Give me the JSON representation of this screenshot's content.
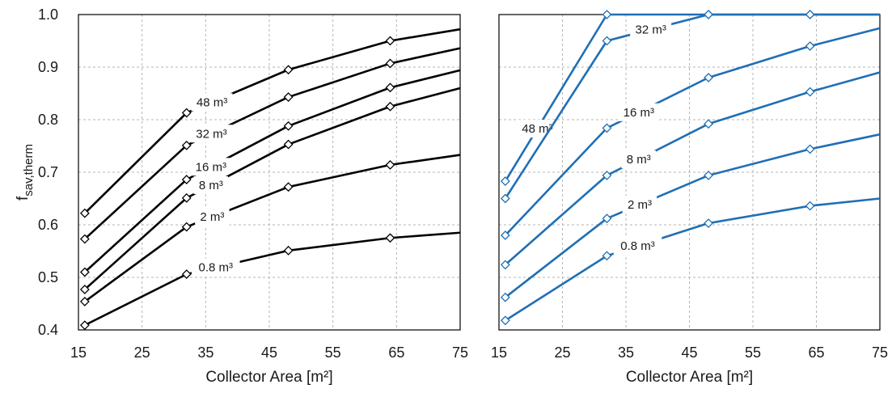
{
  "y_axis_title": {
    "main": "f",
    "subscript": "sav,therm"
  },
  "chart_data": [
    {
      "type": "line",
      "xlabel": "Collector Area [m²]",
      "ylabel": "fsav,therm",
      "xlim": [
        15,
        75
      ],
      "ylim": [
        0.4,
        1.0
      ],
      "xticks": [
        15,
        25,
        35,
        45,
        55,
        65,
        75
      ],
      "yticks": [
        "0.4",
        "0.5",
        "0.6",
        "0.7",
        "0.8",
        "0.9",
        "1.0"
      ],
      "grid": true,
      "color": "#000000",
      "series": [
        {
          "name": "48 m³",
          "x": [
            16,
            32,
            48,
            64,
            75
          ],
          "y": [
            0.622,
            0.813,
            0.895,
            0.95,
            0.972
          ]
        },
        {
          "name": "32 m³",
          "x": [
            16,
            32,
            48,
            64,
            75
          ],
          "y": [
            0.573,
            0.751,
            0.843,
            0.907,
            0.936
          ]
        },
        {
          "name": "16 m³",
          "x": [
            16,
            32,
            48,
            64,
            75
          ],
          "y": [
            0.51,
            0.686,
            0.788,
            0.861,
            0.894
          ]
        },
        {
          "name": "8 m³",
          "x": [
            16,
            32,
            48,
            64,
            75
          ],
          "y": [
            0.477,
            0.651,
            0.753,
            0.825,
            0.86
          ]
        },
        {
          "name": "2 m³",
          "x": [
            16,
            32,
            48,
            64,
            75
          ],
          "y": [
            0.454,
            0.596,
            0.672,
            0.714,
            0.733
          ]
        },
        {
          "name": "0.8 m³",
          "x": [
            16,
            32,
            48,
            64,
            75
          ],
          "y": [
            0.409,
            0.506,
            0.551,
            0.575,
            0.585
          ]
        }
      ]
    },
    {
      "type": "line",
      "xlabel": "Collector Area [m²]",
      "ylabel": "",
      "xlim": [
        15,
        75
      ],
      "ylim": [
        0.4,
        1.0
      ],
      "xticks": [
        15,
        25,
        35,
        45,
        55,
        65,
        75
      ],
      "grid": true,
      "color": "#1f6fb5",
      "series": [
        {
          "name": "48 m³",
          "x": [
            16,
            32,
            48,
            64,
            75
          ],
          "y": [
            0.683,
            1.0,
            1.0,
            1.0,
            1.0
          ]
        },
        {
          "name": "32 m³",
          "x": [
            16,
            32,
            48,
            64,
            75
          ],
          "y": [
            0.65,
            0.95,
            1.0,
            1.0,
            1.0
          ]
        },
        {
          "name": "16 m³",
          "x": [
            16,
            32,
            48,
            64,
            75
          ],
          "y": [
            0.58,
            0.784,
            0.88,
            0.94,
            0.974
          ]
        },
        {
          "name": "8 m³",
          "x": [
            16,
            32,
            48,
            64,
            75
          ],
          "y": [
            0.524,
            0.694,
            0.792,
            0.853,
            0.89
          ]
        },
        {
          "name": "2 m³",
          "x": [
            16,
            32,
            48,
            64,
            75
          ],
          "y": [
            0.462,
            0.612,
            0.694,
            0.744,
            0.772
          ]
        },
        {
          "name": "0.8 m³",
          "x": [
            16,
            32,
            48,
            64,
            75
          ],
          "y": [
            0.418,
            0.541,
            0.603,
            0.636,
            0.65
          ]
        }
      ]
    }
  ]
}
